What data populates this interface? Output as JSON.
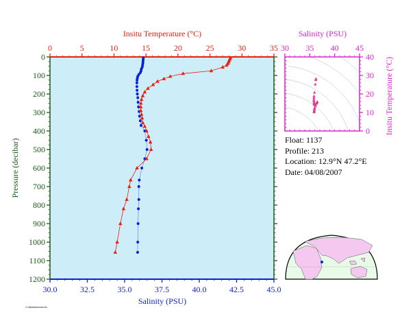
{
  "colors": {
    "plot_bg": "#cdeef9",
    "temperature": "#e8200e",
    "salinity": "#0b1fd8",
    "inset": "#e020d0",
    "pressure_axis": "#1a5a1a",
    "map_land": "#f5c8f0",
    "map_ocean": "#e8fbe8"
  },
  "chart_data": [
    {
      "type": "line",
      "name": "profile",
      "top_axis": {
        "label": "Insitu Temperature (°C)",
        "range": [
          0,
          35
        ],
        "ticks": [
          "0",
          "5",
          "10",
          "15",
          "20",
          "25",
          "30",
          "35"
        ]
      },
      "bottom_axis": {
        "label": "Salinity (PSU)",
        "range": [
          30,
          45
        ],
        "ticks": [
          "30.0",
          "32.5",
          "35.0",
          "37.5",
          "40.0",
          "42.5",
          "45.0"
        ]
      },
      "left_axis": {
        "label": "Pressure (decibar)",
        "range": [
          0,
          1200
        ],
        "inverted": true,
        "ticks": [
          "0",
          "100",
          "200",
          "300",
          "400",
          "500",
          "600",
          "700",
          "800",
          "900",
          "1000",
          "1100",
          "1200"
        ]
      },
      "series": [
        {
          "key": "temperature",
          "marker": "triangle",
          "points": [
            [
              28.2,
              5
            ],
            [
              28.1,
              12
            ],
            [
              28.0,
              20
            ],
            [
              27.9,
              28
            ],
            [
              27.8,
              36
            ],
            [
              27.6,
              45
            ],
            [
              27.0,
              55
            ],
            [
              25.2,
              75
            ],
            [
              20.8,
              90
            ],
            [
              18.8,
              105
            ],
            [
              17.8,
              118
            ],
            [
              16.8,
              132
            ],
            [
              16.1,
              150
            ],
            [
              15.3,
              170
            ],
            [
              14.8,
              190
            ],
            [
              14.5,
              210
            ],
            [
              14.3,
              230
            ],
            [
              14.2,
              250
            ],
            [
              14.2,
              270
            ],
            [
              14.2,
              290
            ],
            [
              14.3,
              310
            ],
            [
              14.4,
              330
            ],
            [
              14.5,
              355
            ],
            [
              14.8,
              375
            ],
            [
              15.1,
              400
            ],
            [
              15.4,
              430
            ],
            [
              15.7,
              460
            ],
            [
              15.8,
              500
            ],
            [
              15.1,
              550
            ],
            [
              13.6,
              600
            ],
            [
              12.6,
              665
            ],
            [
              12.4,
              700
            ],
            [
              12.0,
              770
            ],
            [
              11.5,
              820
            ],
            [
              11.0,
              900
            ],
            [
              10.5,
              1000
            ],
            [
              10.2,
              1055
            ]
          ]
        },
        {
          "key": "salinity",
          "marker": "circle",
          "points": [
            [
              36.25,
              5
            ],
            [
              36.24,
              15
            ],
            [
              36.23,
              25
            ],
            [
              36.22,
              35
            ],
            [
              36.2,
              45
            ],
            [
              36.18,
              55
            ],
            [
              36.12,
              65
            ],
            [
              36.1,
              75
            ],
            [
              36.05,
              85
            ],
            [
              35.95,
              95
            ],
            [
              35.88,
              105
            ],
            [
              35.85,
              115
            ],
            [
              35.83,
              125
            ],
            [
              35.82,
              140
            ],
            [
              35.82,
              160
            ],
            [
              35.83,
              180
            ],
            [
              35.85,
              200
            ],
            [
              35.88,
              220
            ],
            [
              35.9,
              245
            ],
            [
              35.93,
              270
            ],
            [
              35.97,
              295
            ],
            [
              36.0,
              320
            ],
            [
              36.05,
              345
            ],
            [
              36.1,
              370
            ],
            [
              36.35,
              400
            ],
            [
              36.45,
              450
            ],
            [
              36.5,
              500
            ],
            [
              36.35,
              550
            ],
            [
              36.15,
              600
            ],
            [
              35.98,
              665
            ],
            [
              35.95,
              700
            ],
            [
              35.95,
              770
            ],
            [
              35.92,
              820
            ],
            [
              35.9,
              900
            ],
            [
              35.88,
              1000
            ],
            [
              35.87,
              1055
            ]
          ]
        }
      ]
    },
    {
      "type": "scatter",
      "name": "ts-inset",
      "top_axis": {
        "label": "Salinity (PSU)",
        "range": [
          30,
          45
        ],
        "ticks": [
          "30",
          "35",
          "40",
          "45"
        ]
      },
      "right_axis": {
        "label": "Insitu Temperature (°C)",
        "range": [
          0,
          40
        ],
        "ticks": [
          "0",
          "10",
          "20",
          "30",
          "40"
        ]
      },
      "points": [
        [
          36.25,
          28.2
        ],
        [
          36.2,
          27.6
        ],
        [
          36.1,
          25.2
        ],
        [
          35.95,
          20.8
        ],
        [
          35.85,
          18.8
        ],
        [
          35.83,
          17.8
        ],
        [
          35.82,
          16.8
        ],
        [
          35.83,
          16.1
        ],
        [
          35.85,
          15.3
        ],
        [
          35.88,
          14.8
        ],
        [
          35.9,
          14.5
        ],
        [
          35.93,
          14.3
        ],
        [
          35.97,
          14.2
        ],
        [
          36.0,
          14.2
        ],
        [
          36.05,
          14.3
        ],
        [
          36.1,
          14.4
        ],
        [
          36.35,
          14.8
        ],
        [
          36.45,
          15.4
        ],
        [
          36.5,
          15.8
        ],
        [
          36.35,
          15.1
        ],
        [
          36.15,
          13.6
        ],
        [
          35.98,
          12.6
        ],
        [
          35.95,
          12.0
        ],
        [
          35.92,
          11.5
        ],
        [
          35.9,
          11.0
        ],
        [
          35.88,
          10.5
        ],
        [
          35.87,
          10.2
        ]
      ]
    }
  ],
  "info": {
    "float": "Float:  1137",
    "profile": "Profile:  213",
    "location": "Location:  12.9°N  47.2°E",
    "date": "Date:  04/08/2007"
  },
  "credit": "1779899984650300796"
}
